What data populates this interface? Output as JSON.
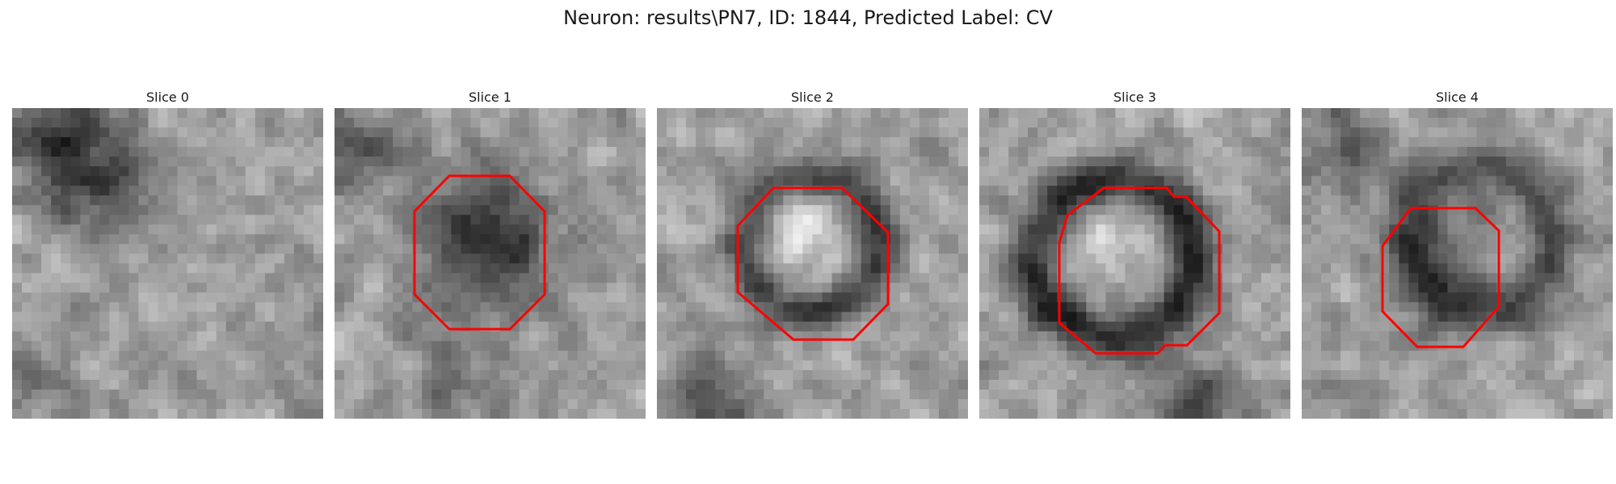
{
  "figure": {
    "title": "Neuron: results\\PN7, ID: 1844, Predicted Label: CV",
    "contour_color": "#ff0000"
  },
  "panels": [
    {
      "title": "Slice 0",
      "has_contour": false
    },
    {
      "title": "Slice 1",
      "has_contour": true
    },
    {
      "title": "Slice 2",
      "has_contour": true
    },
    {
      "title": "Slice 3",
      "has_contour": true
    },
    {
      "title": "Slice 4",
      "has_contour": true
    }
  ]
}
